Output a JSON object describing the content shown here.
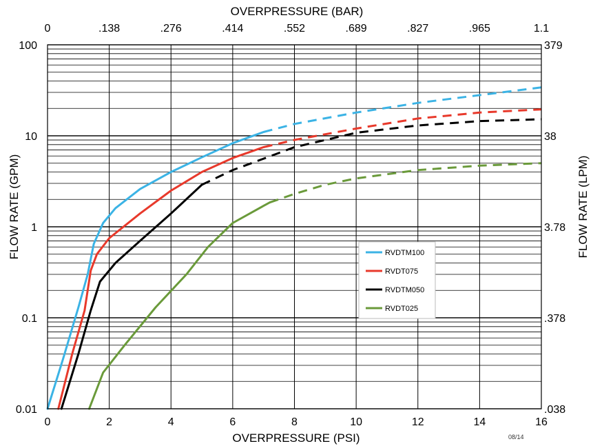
{
  "chart_data": {
    "type": "line",
    "x_bottom_label": "OVERPRESSURE (PSI)",
    "x_top_label": "OVERPRESSURE (BAR)",
    "y_left_label": "FLOW RATE (GPM)",
    "y_right_label": "FLOW RATE (LPM)",
    "x_range": [
      0,
      16
    ],
    "y_range": [
      0.01,
      100
    ],
    "y_scale": "log",
    "x_ticks": [
      "0",
      "2",
      "4",
      "6",
      "8",
      "10",
      "12",
      "14",
      "16"
    ],
    "x_top_ticks": [
      "0",
      ".138",
      ".276",
      ".414",
      ".552",
      ".689",
      ".827",
      ".965",
      "1.1"
    ],
    "y_ticks": [
      "0.01",
      "0.1",
      "1",
      "10",
      "100"
    ],
    "y_right_ticks": [
      ".038",
      ".378",
      "3.78",
      "38",
      "379"
    ],
    "grid": true,
    "legend_position": "center-right",
    "footnote": "08/14",
    "series": [
      {
        "name": "RVDTM100",
        "color": "#3bb3e5",
        "points_solid": [
          [
            0,
            0.01
          ],
          [
            0.5,
            0.035
          ],
          [
            1.0,
            0.13
          ],
          [
            1.3,
            0.3
          ],
          [
            1.5,
            0.65
          ],
          [
            1.8,
            1.1
          ],
          [
            2.2,
            1.6
          ],
          [
            3.0,
            2.6
          ],
          [
            4.0,
            4.0
          ],
          [
            5.0,
            5.8
          ],
          [
            6.0,
            8.3
          ],
          [
            7.0,
            11.0
          ]
        ],
        "points_dashed": [
          [
            7.0,
            11.0
          ],
          [
            8.0,
            13.5
          ],
          [
            10.0,
            18.0
          ],
          [
            12.0,
            23.0
          ],
          [
            14.0,
            28.0
          ],
          [
            16.0,
            34.0
          ]
        ]
      },
      {
        "name": "RVDT075",
        "color": "#e8392b",
        "points_solid": [
          [
            0.35,
            0.01
          ],
          [
            0.8,
            0.04
          ],
          [
            1.2,
            0.12
          ],
          [
            1.4,
            0.33
          ],
          [
            1.6,
            0.5
          ],
          [
            2.0,
            0.75
          ],
          [
            3.0,
            1.4
          ],
          [
            4.0,
            2.5
          ],
          [
            5.0,
            4.0
          ],
          [
            6.0,
            5.7
          ],
          [
            7.0,
            7.5
          ]
        ],
        "points_dashed": [
          [
            7.0,
            7.5
          ],
          [
            8.0,
            9.0
          ],
          [
            10.0,
            12.0
          ],
          [
            12.0,
            15.5
          ],
          [
            14.0,
            18.0
          ],
          [
            16.0,
            19.5
          ]
        ]
      },
      {
        "name": "RVDTM050",
        "color": "#000000",
        "points_solid": [
          [
            0.45,
            0.01
          ],
          [
            1.0,
            0.04
          ],
          [
            1.4,
            0.12
          ],
          [
            1.7,
            0.25
          ],
          [
            2.2,
            0.4
          ],
          [
            3.0,
            0.7
          ],
          [
            4.0,
            1.4
          ],
          [
            5.0,
            2.9
          ]
        ],
        "points_dashed": [
          [
            5.0,
            2.9
          ],
          [
            6.0,
            4.2
          ],
          [
            7.0,
            5.6
          ],
          [
            8.0,
            7.5
          ],
          [
            10.0,
            10.8
          ],
          [
            12.0,
            13.0
          ],
          [
            14.0,
            14.5
          ],
          [
            16.0,
            15.2
          ]
        ]
      },
      {
        "name": "RVDT025",
        "color": "#6a9a3a",
        "points_solid": [
          [
            1.35,
            0.01
          ],
          [
            1.8,
            0.025
          ],
          [
            2.5,
            0.05
          ],
          [
            3.5,
            0.13
          ],
          [
            4.5,
            0.3
          ],
          [
            5.2,
            0.6
          ],
          [
            6.0,
            1.1
          ],
          [
            7.0,
            1.7
          ],
          [
            7.2,
            1.85
          ]
        ],
        "points_dashed": [
          [
            7.2,
            1.85
          ],
          [
            8.0,
            2.3
          ],
          [
            9.0,
            2.9
          ],
          [
            10.0,
            3.4
          ],
          [
            12.0,
            4.2
          ],
          [
            14.0,
            4.7
          ],
          [
            16.0,
            5.0
          ]
        ]
      }
    ]
  }
}
